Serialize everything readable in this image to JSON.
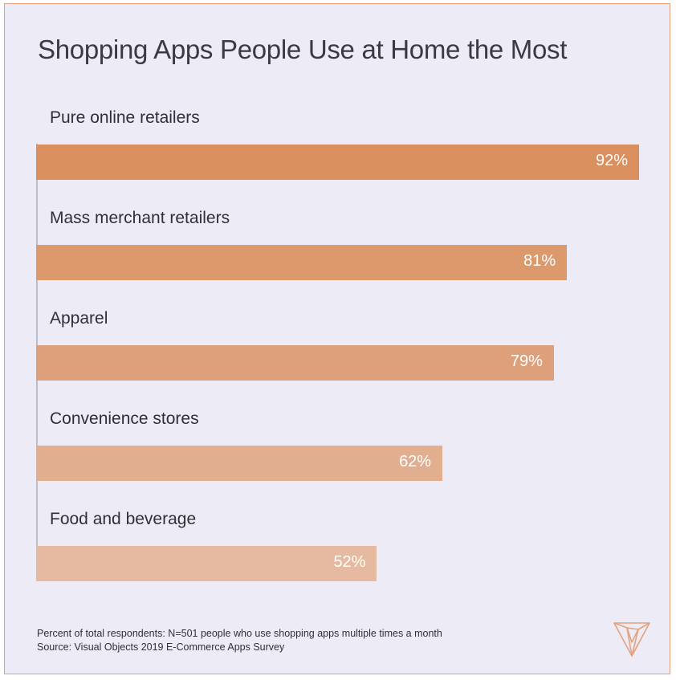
{
  "chart_data": {
    "type": "bar",
    "orientation": "horizontal",
    "title": "Shopping Apps People Use at Home the Most",
    "categories": [
      "Pure online retailers",
      "Mass merchant retailers",
      "Apparel",
      "Convenience stores",
      "Food and beverage"
    ],
    "values": [
      92,
      81,
      79,
      62,
      52
    ],
    "value_labels": [
      "92%",
      "81%",
      "79%",
      "62%",
      "52%"
    ],
    "unit": "%",
    "xlim": [
      0,
      92
    ],
    "grid": false,
    "bar_colors": [
      "#d98f5e",
      "#dc9a6c",
      "#dea07a",
      "#e2ae90",
      "#e6baa0"
    ]
  },
  "footnote": {
    "line1": "Percent of total respondents: N=501 people who use shopping apps multiple times a month",
    "line2": "Source: Visual Objects 2019 E-Commerce Apps Survey"
  },
  "colors": {
    "background": "#edecf6",
    "border": "#e3a27e",
    "logo": "#e3a27e"
  },
  "logo": {
    "icon": "visual-objects-logo-icon"
  }
}
